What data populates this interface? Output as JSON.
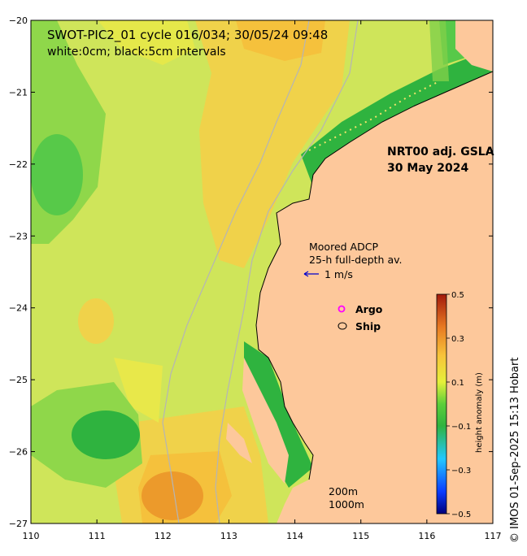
{
  "title_line1": "SWOT-PIC2_01 cycle 016/034; 30/05/24 09:48",
  "title_line2": "white:0cm; black:5cm intervals",
  "product_line1": "NRT00 adj. GSLA",
  "product_line2": "30 May 2024",
  "adcp_line1": "Moored ADCP",
  "adcp_line2": "25-h full-depth av.",
  "adcp_scale": "1 m/s",
  "legend_argo": "Argo",
  "legend_ship": "Ship",
  "depth_label_1": "200m",
  "depth_label_2": "1000m",
  "credit": "© IMOS 01-Sep-2025 15:13 Hobart",
  "colorbar": {
    "title": "height anomaly (m)",
    "ticks": [
      "0.5",
      "0.3",
      "0.1",
      "-0.1",
      "-0.3",
      "-0.5"
    ]
  },
  "colors": {
    "land": "#fdc89b",
    "sea_base": "#cfe55a",
    "warm": "#f5c13c",
    "hot": "#ec9a2b",
    "cool": "#57c949",
    "cold": "#2fb33f",
    "contour": "#b5b5b5"
  },
  "axes": {
    "x_ticks": [
      "110",
      "111",
      "112",
      "113",
      "114",
      "115",
      "116",
      "117"
    ],
    "y_ticks": [
      "-20",
      "-21",
      "-22",
      "-23",
      "-24",
      "-25",
      "-26",
      "-27"
    ]
  }
}
